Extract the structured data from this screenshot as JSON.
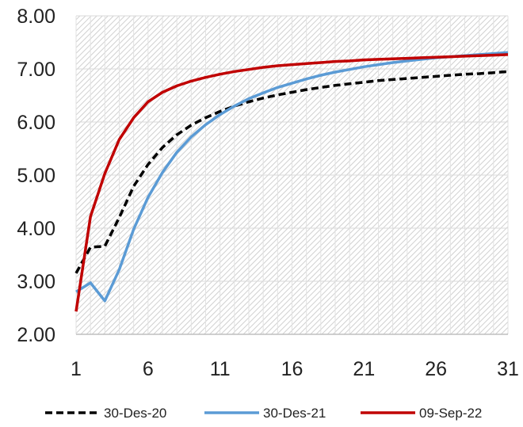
{
  "chart_data": {
    "type": "line",
    "title": "",
    "xlabel": "",
    "ylabel": "",
    "xlim": [
      1,
      31
    ],
    "ylim": [
      2,
      8
    ],
    "x_ticks": [
      1,
      6,
      11,
      16,
      21,
      26,
      31
    ],
    "x_tick_labels": [
      "1",
      "6",
      "11",
      "16",
      "21",
      "26",
      "31"
    ],
    "y_ticks": [
      2,
      3,
      4,
      5,
      6,
      7,
      8
    ],
    "y_tick_labels": [
      "2.00",
      "3.00",
      "4.00",
      "5.00",
      "6.00",
      "7.00",
      "8.00"
    ],
    "grid": true,
    "legend_position": "bottom",
    "x": [
      1,
      2,
      3,
      4,
      5,
      6,
      7,
      8,
      9,
      10,
      11,
      12,
      13,
      14,
      15,
      16,
      17,
      18,
      19,
      20,
      21,
      22,
      23,
      24,
      25,
      26,
      27,
      28,
      29,
      30,
      31
    ],
    "series": [
      {
        "name": "30-Des-20",
        "color": "#000000",
        "dash": "dashed",
        "values": [
          3.15,
          3.64,
          3.66,
          4.2,
          4.79,
          5.2,
          5.52,
          5.76,
          5.94,
          6.08,
          6.2,
          6.3,
          6.38,
          6.45,
          6.51,
          6.56,
          6.61,
          6.65,
          6.69,
          6.72,
          6.75,
          6.78,
          6.8,
          6.82,
          6.84,
          6.86,
          6.88,
          6.9,
          6.91,
          6.93,
          6.95
        ]
      },
      {
        "name": "30-Des-21",
        "color": "#5b9bd5",
        "dash": "solid",
        "values": [
          2.8,
          2.97,
          2.63,
          3.22,
          3.98,
          4.58,
          5.05,
          5.43,
          5.72,
          5.95,
          6.14,
          6.3,
          6.44,
          6.55,
          6.65,
          6.73,
          6.81,
          6.88,
          6.94,
          6.99,
          7.04,
          7.08,
          7.12,
          7.15,
          7.18,
          7.21,
          7.23,
          7.25,
          7.27,
          7.29,
          7.31
        ]
      },
      {
        "name": "09-Sep-22",
        "color": "#c00000",
        "dash": "solid",
        "values": [
          2.43,
          4.22,
          5.03,
          5.67,
          6.08,
          6.38,
          6.56,
          6.68,
          6.77,
          6.84,
          6.9,
          6.95,
          6.99,
          7.03,
          7.06,
          7.08,
          7.1,
          7.12,
          7.14,
          7.15,
          7.17,
          7.18,
          7.19,
          7.2,
          7.21,
          7.22,
          7.23,
          7.24,
          7.25,
          7.26,
          7.27
        ]
      }
    ]
  }
}
